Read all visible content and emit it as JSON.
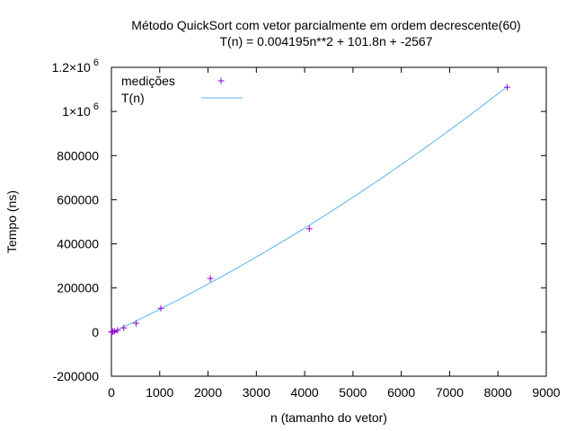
{
  "chart_data": {
    "type": "scatter",
    "title": "Método QuickSort com vetor parcialmente em ordem decrescente(60)",
    "subtitle": "T(n) = 0.004195n**2 + 101.8n + -2567",
    "xlabel": "n (tamanho do vetor)",
    "ylabel": "Tempo (ns)",
    "xlim": [
      0,
      9000
    ],
    "ylim": [
      -200000,
      1200000
    ],
    "x_ticks": [
      {
        "value": 0,
        "label": "0"
      },
      {
        "value": 1000,
        "label": "1000"
      },
      {
        "value": 2000,
        "label": "2000"
      },
      {
        "value": 3000,
        "label": "3000"
      },
      {
        "value": 4000,
        "label": "4000"
      },
      {
        "value": 5000,
        "label": "5000"
      },
      {
        "value": 6000,
        "label": "6000"
      },
      {
        "value": 7000,
        "label": "7000"
      },
      {
        "value": 8000,
        "label": "8000"
      },
      {
        "value": 9000,
        "label": "9000"
      }
    ],
    "y_ticks": [
      {
        "value": -200000,
        "label": "-200000"
      },
      {
        "value": 0,
        "label": "0"
      },
      {
        "value": 200000,
        "label": "200000"
      },
      {
        "value": 400000,
        "label": "400000"
      },
      {
        "value": 600000,
        "label": "600000"
      },
      {
        "value": 800000,
        "label": "800000"
      },
      {
        "value": 1000000,
        "label": "1×10",
        "exp": "6"
      },
      {
        "value": 1200000,
        "label": "1.2×10",
        "exp": "6"
      }
    ],
    "grid": false,
    "legend_position": "top-left",
    "series": [
      {
        "name": "medições",
        "kind": "points",
        "color": "#9400d3",
        "x": [
          2,
          4,
          8,
          16,
          32,
          64,
          128,
          256,
          512,
          1024,
          2048,
          4096,
          8192
        ],
        "y": [
          500,
          700,
          1000,
          1500,
          2500,
          4000,
          8000,
          19000,
          40000,
          108000,
          243000,
          468000,
          1110000
        ]
      },
      {
        "name": "T(n)",
        "kind": "function",
        "color": "#56b4e9",
        "coefficients": {
          "a": 0.004195,
          "b": 101.8,
          "c": -2567
        },
        "domain": [
          0,
          8192
        ]
      }
    ]
  }
}
